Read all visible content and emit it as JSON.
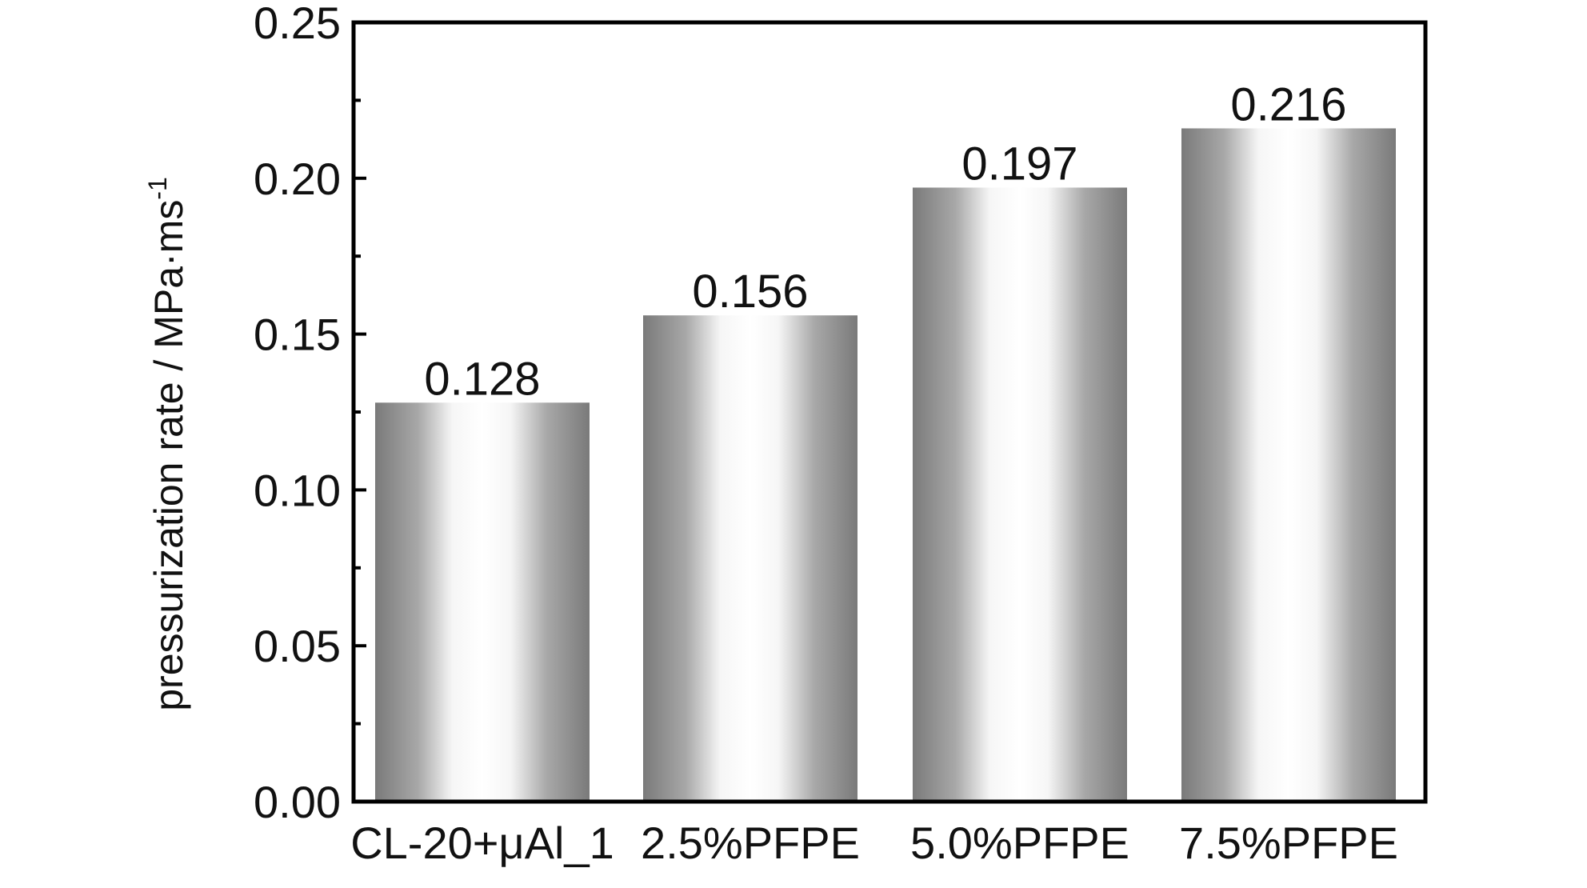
{
  "chart_data": {
    "type": "bar",
    "title": "",
    "xlabel": "",
    "ylabel": "pressurization rate / MPa·ms",
    "ylabel_superscript": "-1",
    "categories": [
      "CL-20+μAl_1",
      "2.5%PFPE",
      "5.0%PFPE",
      "7.5%PFPE"
    ],
    "values": [
      0.128,
      0.156,
      0.197,
      0.216
    ],
    "data_labels": [
      "0.128",
      "0.156",
      "0.197",
      "0.216"
    ],
    "ylim": [
      0,
      0.25
    ],
    "yticks": [
      "0.00",
      "0.05",
      "0.10",
      "0.15",
      "0.20",
      "0.25"
    ],
    "grid": false,
    "legend": "none",
    "bar_colors": {
      "dark": "#7a7a7a",
      "mid": "#b4b4b4",
      "light": "#ffffff"
    },
    "frame_color": "#000000"
  }
}
